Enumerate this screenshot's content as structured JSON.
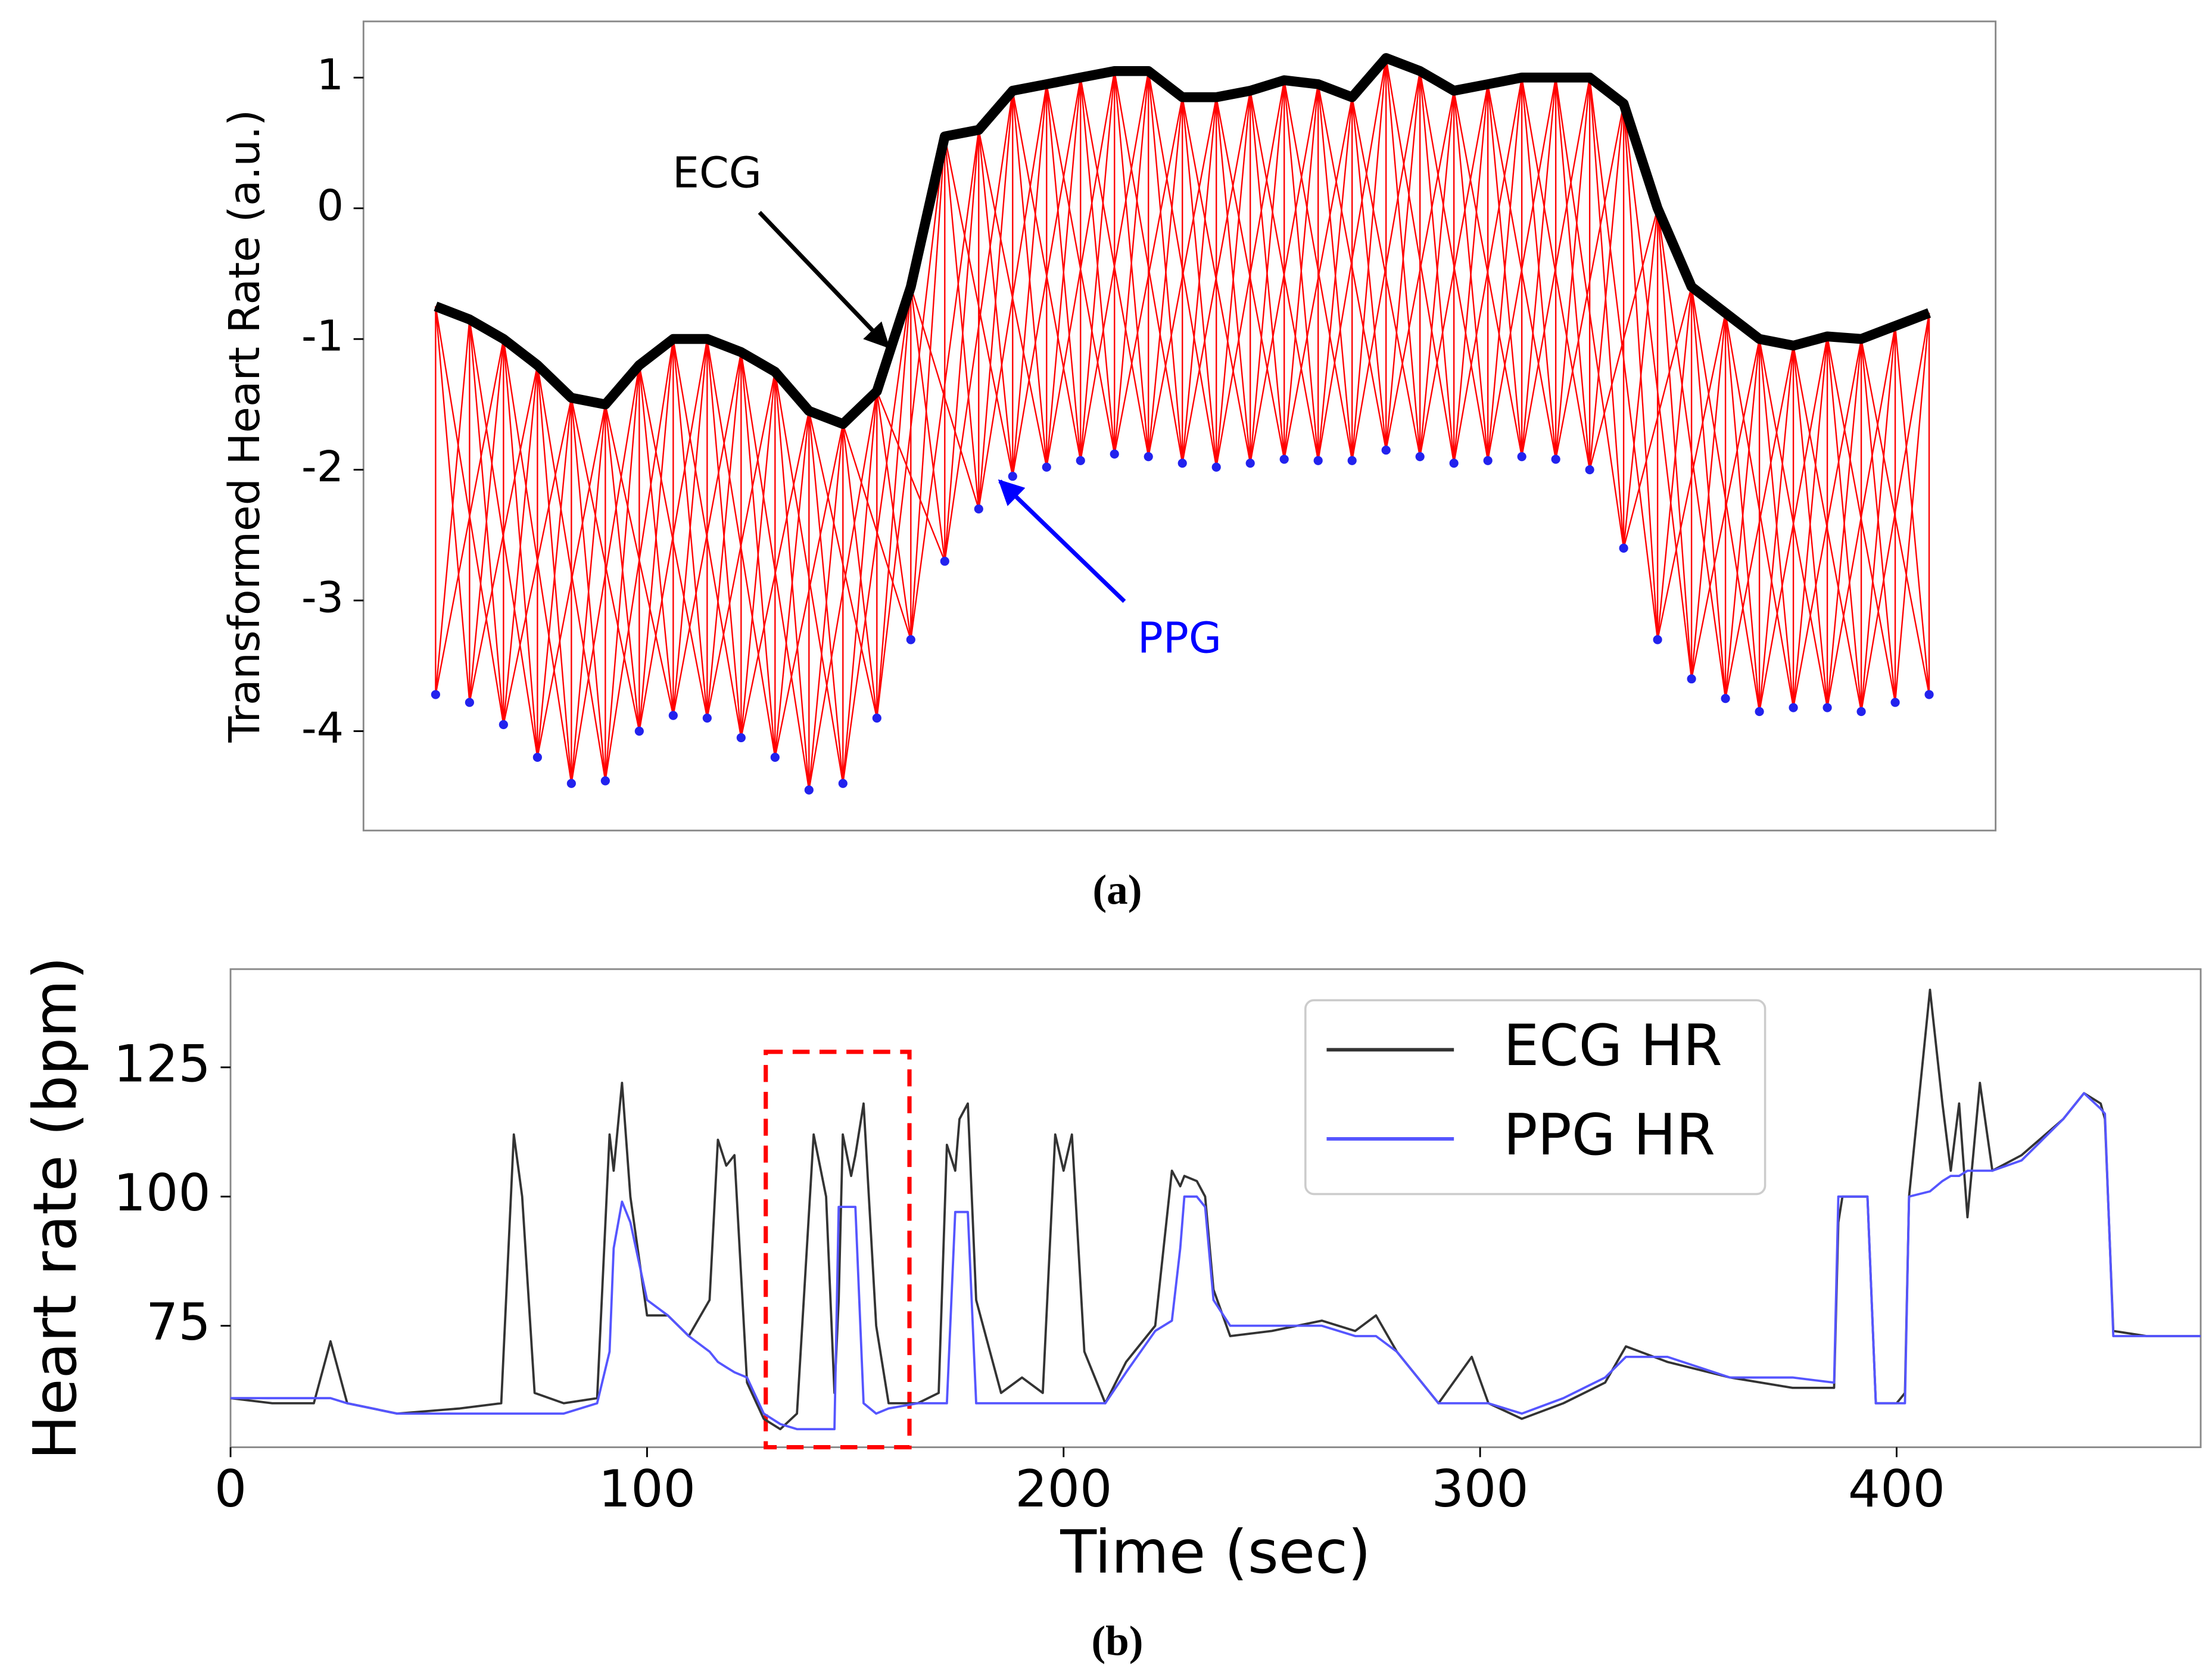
{
  "chart_data": [
    {
      "type": "line",
      "ylabel": "Transformed Heart Rate (a.u.)",
      "ylim": [
        -4.76,
        1.43
      ],
      "yticks": [
        -4,
        -3,
        -2,
        -1,
        0,
        1
      ],
      "alignment_color": "#ff0000",
      "annotations": [
        {
          "text": "ECG",
          "color": "#000000"
        },
        {
          "text": "PPG",
          "color": "#0000ff"
        }
      ],
      "series": [
        {
          "color": "#000000",
          "style": "line",
          "values": [
            -0.75,
            -0.85,
            -1.0,
            -1.2,
            -1.45,
            -1.5,
            -1.2,
            -1.0,
            -1.0,
            -1.1,
            -1.25,
            -1.55,
            -1.65,
            -1.4,
            -0.6,
            0.55,
            0.6,
            0.9,
            0.95,
            1.0,
            1.05,
            1.05,
            0.85,
            0.85,
            0.9,
            0.98,
            0.95,
            0.85,
            1.15,
            1.05,
            0.9,
            0.95,
            1.0,
            1.0,
            1.0,
            0.8,
            0.0,
            -0.6,
            -0.8,
            -1.0,
            -1.05,
            -0.98,
            -1.0,
            -0.9,
            -0.8
          ]
        },
        {
          "color": "#2222ee",
          "style": "markers",
          "values": [
            -3.72,
            -3.78,
            -3.95,
            -4.2,
            -4.4,
            -4.38,
            -4.0,
            -3.88,
            -3.9,
            -4.05,
            -4.2,
            -4.45,
            -4.4,
            -3.9,
            -3.3,
            -2.7,
            -2.3,
            -2.05,
            -1.98,
            -1.93,
            -1.88,
            -1.9,
            -1.95,
            -1.98,
            -1.95,
            -1.92,
            -1.93,
            -1.93,
            -1.85,
            -1.9,
            -1.95,
            -1.93,
            -1.9,
            -1.92,
            -2.0,
            -2.6,
            -3.3,
            -3.6,
            -3.75,
            -3.85,
            -3.82,
            -3.82,
            -3.85,
            -3.78,
            -3.72
          ]
        }
      ],
      "caption": "(a)"
    },
    {
      "type": "line",
      "xlabel": "Time (sec)",
      "ylabel": "Heart rate (bpm)",
      "xlim": [
        0,
        473
      ],
      "xticks": [
        0,
        100,
        200,
        300,
        400
      ],
      "ylim": [
        51.5,
        144
      ],
      "yticks": [
        75,
        100,
        125
      ],
      "legend": "upper right",
      "highlight": {
        "color": "#ff0000",
        "x": [
          128.5,
          163
        ],
        "y": [
          51.5,
          128
        ]
      },
      "x": [
        0,
        10,
        20,
        24,
        28,
        40,
        55,
        65,
        68,
        70,
        73,
        80,
        88,
        91,
        92,
        94,
        96,
        100,
        105,
        110,
        115,
        117,
        119,
        121,
        124,
        128,
        132,
        136,
        140,
        143,
        145,
        146,
        147,
        149,
        150,
        152,
        155,
        158,
        165,
        170,
        172,
        174,
        175,
        177,
        179,
        185,
        190,
        195,
        198,
        200,
        202,
        205,
        210,
        215,
        222,
        226,
        228,
        229,
        232,
        234,
        236,
        240,
        250,
        262,
        270,
        275,
        280,
        290,
        298,
        302,
        310,
        320,
        330,
        335,
        345,
        360,
        375,
        385,
        386,
        387,
        393,
        395,
        400,
        402,
        403,
        408,
        411,
        413,
        415,
        417,
        420,
        423,
        430,
        440,
        445,
        449,
        450,
        452,
        460,
        473
      ],
      "series": [
        {
          "name": "ECG HR",
          "color": "#333333",
          "style": "line",
          "values": [
            61,
            60,
            60,
            72,
            60,
            58,
            59,
            60,
            112,
            100,
            62,
            60,
            61,
            112,
            105,
            122,
            100,
            77,
            77,
            73,
            80,
            111,
            106,
            108,
            64,
            57,
            55,
            58,
            112,
            100,
            62,
            80,
            112,
            104,
            108,
            118,
            75,
            60,
            60,
            62,
            110,
            105,
            115,
            118,
            80,
            62,
            65,
            62,
            112,
            105,
            112,
            70,
            60,
            68,
            75,
            105,
            102,
            104,
            103,
            100,
            82,
            73,
            74,
            76,
            74,
            77,
            70,
            60,
            69,
            60,
            57,
            60,
            64,
            71,
            68,
            65,
            63,
            63,
            95,
            100,
            100,
            60,
            60,
            62,
            100,
            140,
            118,
            105,
            118,
            96,
            122,
            105,
            108,
            115,
            120,
            118,
            115,
            74,
            73,
            73
          ]
        },
        {
          "name": "PPG HR",
          "color": "#5555ff",
          "style": "line",
          "values": [
            61,
            61,
            61,
            61,
            60,
            58,
            58,
            58,
            58,
            58,
            58,
            58,
            60,
            70,
            90,
            99,
            95,
            80,
            77,
            73,
            70,
            68,
            67,
            66,
            65,
            58,
            56,
            55,
            55,
            55,
            55,
            98,
            98,
            98,
            98,
            60,
            58,
            59,
            60,
            60,
            60,
            97,
            97,
            97,
            60,
            60,
            60,
            60,
            60,
            60,
            60,
            60,
            60,
            66,
            74,
            76,
            90,
            100,
            100,
            98,
            80,
            75,
            75,
            75,
            73,
            73,
            70,
            60,
            60,
            60,
            58,
            61,
            65,
            69,
            69,
            65,
            65,
            64,
            100,
            100,
            100,
            60,
            60,
            60,
            100,
            101,
            103,
            104,
            104,
            105,
            105,
            105,
            107,
            115,
            120,
            117,
            116,
            73,
            73,
            73
          ]
        }
      ],
      "caption": "(b)"
    }
  ]
}
